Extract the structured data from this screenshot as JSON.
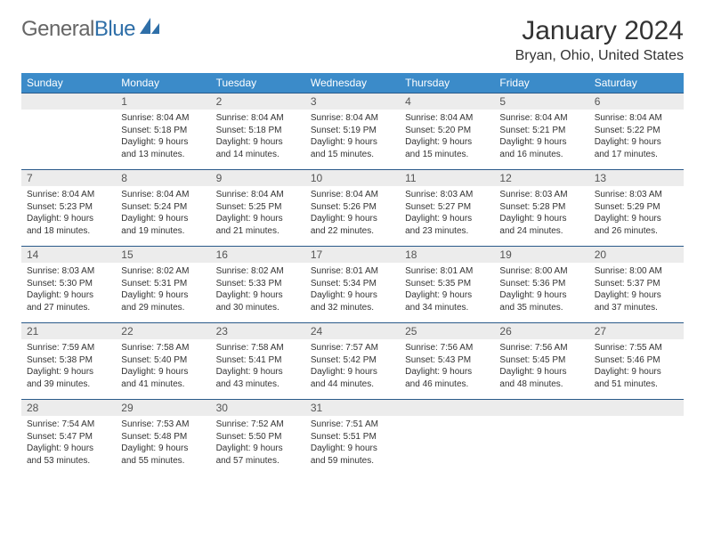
{
  "brand": {
    "part1": "General",
    "part2": "Blue"
  },
  "title": "January 2024",
  "location": "Bryan, Ohio, United States",
  "colors": {
    "header_bg": "#3b8bc9",
    "header_fg": "#ffffff",
    "row_border": "#2a5a8a",
    "daynum_bg": "#ececec",
    "text": "#333333",
    "logo_gray": "#666666",
    "logo_blue": "#2f6fa8",
    "page_bg": "#ffffff"
  },
  "days": [
    "Sunday",
    "Monday",
    "Tuesday",
    "Wednesday",
    "Thursday",
    "Friday",
    "Saturday"
  ],
  "weeks": [
    [
      null,
      {
        "n": "1",
        "rise": "8:04 AM",
        "set": "5:18 PM",
        "dl": "9 hours and 13 minutes."
      },
      {
        "n": "2",
        "rise": "8:04 AM",
        "set": "5:18 PM",
        "dl": "9 hours and 14 minutes."
      },
      {
        "n": "3",
        "rise": "8:04 AM",
        "set": "5:19 PM",
        "dl": "9 hours and 15 minutes."
      },
      {
        "n": "4",
        "rise": "8:04 AM",
        "set": "5:20 PM",
        "dl": "9 hours and 15 minutes."
      },
      {
        "n": "5",
        "rise": "8:04 AM",
        "set": "5:21 PM",
        "dl": "9 hours and 16 minutes."
      },
      {
        "n": "6",
        "rise": "8:04 AM",
        "set": "5:22 PM",
        "dl": "9 hours and 17 minutes."
      }
    ],
    [
      {
        "n": "7",
        "rise": "8:04 AM",
        "set": "5:23 PM",
        "dl": "9 hours and 18 minutes."
      },
      {
        "n": "8",
        "rise": "8:04 AM",
        "set": "5:24 PM",
        "dl": "9 hours and 19 minutes."
      },
      {
        "n": "9",
        "rise": "8:04 AM",
        "set": "5:25 PM",
        "dl": "9 hours and 21 minutes."
      },
      {
        "n": "10",
        "rise": "8:04 AM",
        "set": "5:26 PM",
        "dl": "9 hours and 22 minutes."
      },
      {
        "n": "11",
        "rise": "8:03 AM",
        "set": "5:27 PM",
        "dl": "9 hours and 23 minutes."
      },
      {
        "n": "12",
        "rise": "8:03 AM",
        "set": "5:28 PM",
        "dl": "9 hours and 24 minutes."
      },
      {
        "n": "13",
        "rise": "8:03 AM",
        "set": "5:29 PM",
        "dl": "9 hours and 26 minutes."
      }
    ],
    [
      {
        "n": "14",
        "rise": "8:03 AM",
        "set": "5:30 PM",
        "dl": "9 hours and 27 minutes."
      },
      {
        "n": "15",
        "rise": "8:02 AM",
        "set": "5:31 PM",
        "dl": "9 hours and 29 minutes."
      },
      {
        "n": "16",
        "rise": "8:02 AM",
        "set": "5:33 PM",
        "dl": "9 hours and 30 minutes."
      },
      {
        "n": "17",
        "rise": "8:01 AM",
        "set": "5:34 PM",
        "dl": "9 hours and 32 minutes."
      },
      {
        "n": "18",
        "rise": "8:01 AM",
        "set": "5:35 PM",
        "dl": "9 hours and 34 minutes."
      },
      {
        "n": "19",
        "rise": "8:00 AM",
        "set": "5:36 PM",
        "dl": "9 hours and 35 minutes."
      },
      {
        "n": "20",
        "rise": "8:00 AM",
        "set": "5:37 PM",
        "dl": "9 hours and 37 minutes."
      }
    ],
    [
      {
        "n": "21",
        "rise": "7:59 AM",
        "set": "5:38 PM",
        "dl": "9 hours and 39 minutes."
      },
      {
        "n": "22",
        "rise": "7:58 AM",
        "set": "5:40 PM",
        "dl": "9 hours and 41 minutes."
      },
      {
        "n": "23",
        "rise": "7:58 AM",
        "set": "5:41 PM",
        "dl": "9 hours and 43 minutes."
      },
      {
        "n": "24",
        "rise": "7:57 AM",
        "set": "5:42 PM",
        "dl": "9 hours and 44 minutes."
      },
      {
        "n": "25",
        "rise": "7:56 AM",
        "set": "5:43 PM",
        "dl": "9 hours and 46 minutes."
      },
      {
        "n": "26",
        "rise": "7:56 AM",
        "set": "5:45 PM",
        "dl": "9 hours and 48 minutes."
      },
      {
        "n": "27",
        "rise": "7:55 AM",
        "set": "5:46 PM",
        "dl": "9 hours and 51 minutes."
      }
    ],
    [
      {
        "n": "28",
        "rise": "7:54 AM",
        "set": "5:47 PM",
        "dl": "9 hours and 53 minutes."
      },
      {
        "n": "29",
        "rise": "7:53 AM",
        "set": "5:48 PM",
        "dl": "9 hours and 55 minutes."
      },
      {
        "n": "30",
        "rise": "7:52 AM",
        "set": "5:50 PM",
        "dl": "9 hours and 57 minutes."
      },
      {
        "n": "31",
        "rise": "7:51 AM",
        "set": "5:51 PM",
        "dl": "9 hours and 59 minutes."
      },
      null,
      null,
      null
    ]
  ],
  "labels": {
    "sunrise": "Sunrise:",
    "sunset": "Sunset:",
    "daylight": "Daylight:"
  }
}
